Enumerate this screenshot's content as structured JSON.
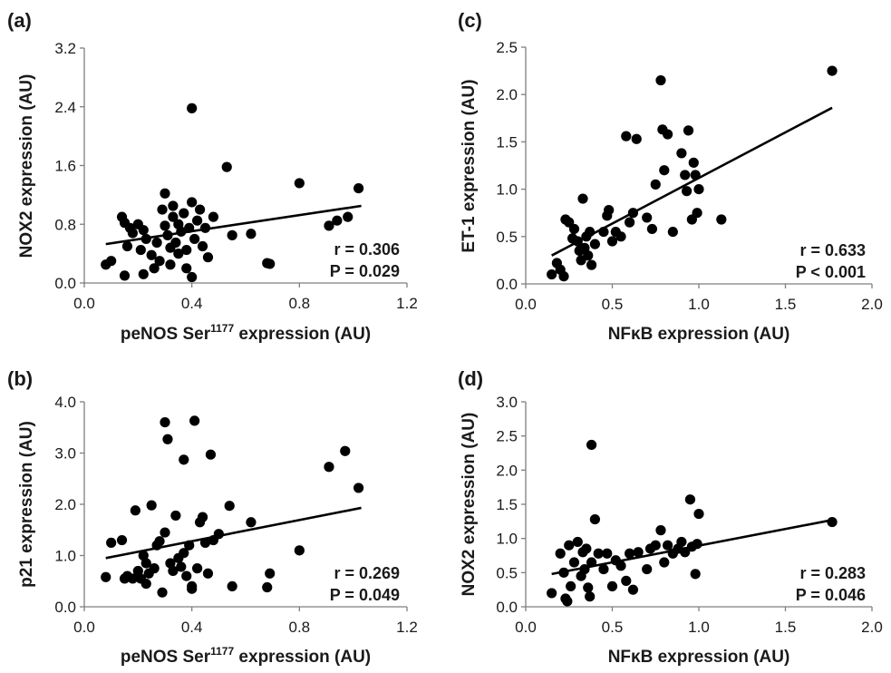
{
  "chart_data": [
    {
      "type": "scatter",
      "panel_label": "(a)",
      "xlabel_main": "peNOS Ser",
      "xlabel_sup": "1177",
      "xlabel_rest": " expression  (AU)",
      "ylabel": "NOX2 expression (AU)",
      "xlim": [
        0,
        1.2
      ],
      "ylim": [
        0,
        3.2
      ],
      "xticks": [
        "0.0",
        "0.4",
        "0.8",
        "1.2"
      ],
      "yticks": [
        "0.0",
        "0.8",
        "1.6",
        "2.4",
        "3.2"
      ],
      "r_text": "r  = 0.306",
      "p_text": "P = 0.029",
      "trendline": {
        "x": [
          0.08,
          1.03
        ],
        "y": [
          0.53,
          1.05
        ]
      },
      "points": [
        [
          0.08,
          0.25
        ],
        [
          0.1,
          0.3
        ],
        [
          0.14,
          0.9
        ],
        [
          0.15,
          0.82
        ],
        [
          0.15,
          0.1
        ],
        [
          0.16,
          0.5
        ],
        [
          0.17,
          0.75
        ],
        [
          0.18,
          0.68
        ],
        [
          0.2,
          0.8
        ],
        [
          0.21,
          0.45
        ],
        [
          0.22,
          0.72
        ],
        [
          0.22,
          0.12
        ],
        [
          0.23,
          0.6
        ],
        [
          0.25,
          0.38
        ],
        [
          0.26,
          0.2
        ],
        [
          0.27,
          0.55
        ],
        [
          0.28,
          0.3
        ],
        [
          0.29,
          1.0
        ],
        [
          0.3,
          1.22
        ],
        [
          0.3,
          0.78
        ],
        [
          0.31,
          0.65
        ],
        [
          0.32,
          0.48
        ],
        [
          0.32,
          0.25
        ],
        [
          0.33,
          1.05
        ],
        [
          0.33,
          0.9
        ],
        [
          0.34,
          0.55
        ],
        [
          0.35,
          0.4
        ],
        [
          0.35,
          0.8
        ],
        [
          0.36,
          0.7
        ],
        [
          0.37,
          0.95
        ],
        [
          0.38,
          0.2
        ],
        [
          0.38,
          0.45
        ],
        [
          0.39,
          0.75
        ],
        [
          0.4,
          1.1
        ],
        [
          0.4,
          0.08
        ],
        [
          0.4,
          2.38
        ],
        [
          0.41,
          0.6
        ],
        [
          0.42,
          0.85
        ],
        [
          0.43,
          1.0
        ],
        [
          0.44,
          0.5
        ],
        [
          0.45,
          0.75
        ],
        [
          0.46,
          0.35
        ],
        [
          0.48,
          0.9
        ],
        [
          0.53,
          1.58
        ],
        [
          0.55,
          0.65
        ],
        [
          0.62,
          0.67
        ],
        [
          0.68,
          0.27
        ],
        [
          0.69,
          0.26
        ],
        [
          0.8,
          1.36
        ],
        [
          0.91,
          0.78
        ],
        [
          0.94,
          0.85
        ],
        [
          0.98,
          0.9
        ],
        [
          1.02,
          1.29
        ]
      ]
    },
    {
      "type": "scatter",
      "panel_label": "(b)",
      "xlabel_main": "peNOS Ser",
      "xlabel_sup": "1177",
      "xlabel_rest": " expression (AU)",
      "ylabel": "p21 expression (AU)",
      "xlim": [
        0,
        1.2
      ],
      "ylim": [
        0,
        4.0
      ],
      "xticks": [
        "0.0",
        "0.4",
        "0.8",
        "1.2"
      ],
      "yticks": [
        "0.0",
        "1.0",
        "2.0",
        "3.0",
        "4.0"
      ],
      "r_text": "r = 0.269",
      "p_text": "P = 0.049",
      "trendline": {
        "x": [
          0.08,
          1.03
        ],
        "y": [
          0.95,
          1.93
        ]
      },
      "points": [
        [
          0.08,
          0.58
        ],
        [
          0.1,
          1.25
        ],
        [
          0.14,
          1.3
        ],
        [
          0.15,
          0.55
        ],
        [
          0.16,
          0.6
        ],
        [
          0.18,
          0.55
        ],
        [
          0.19,
          1.88
        ],
        [
          0.2,
          0.7
        ],
        [
          0.21,
          0.55
        ],
        [
          0.22,
          1.0
        ],
        [
          0.23,
          0.85
        ],
        [
          0.23,
          0.45
        ],
        [
          0.24,
          0.65
        ],
        [
          0.25,
          1.98
        ],
        [
          0.26,
          0.75
        ],
        [
          0.27,
          1.2
        ],
        [
          0.28,
          1.28
        ],
        [
          0.29,
          0.28
        ],
        [
          0.3,
          3.6
        ],
        [
          0.3,
          1.45
        ],
        [
          0.31,
          3.27
        ],
        [
          0.32,
          0.85
        ],
        [
          0.33,
          0.7
        ],
        [
          0.34,
          1.78
        ],
        [
          0.35,
          0.95
        ],
        [
          0.36,
          0.78
        ],
        [
          0.37,
          2.87
        ],
        [
          0.37,
          1.05
        ],
        [
          0.38,
          0.6
        ],
        [
          0.39,
          1.2
        ],
        [
          0.4,
          0.4
        ],
        [
          0.4,
          0.35
        ],
        [
          0.41,
          3.63
        ],
        [
          0.42,
          0.75
        ],
        [
          0.43,
          1.65
        ],
        [
          0.44,
          1.75
        ],
        [
          0.45,
          1.25
        ],
        [
          0.46,
          0.65
        ],
        [
          0.47,
          2.97
        ],
        [
          0.48,
          1.3
        ],
        [
          0.5,
          1.42
        ],
        [
          0.54,
          1.97
        ],
        [
          0.55,
          0.4
        ],
        [
          0.62,
          1.65
        ],
        [
          0.68,
          0.38
        ],
        [
          0.69,
          0.65
        ],
        [
          0.8,
          1.1
        ],
        [
          0.91,
          2.73
        ],
        [
          0.97,
          3.04
        ],
        [
          1.02,
          2.32
        ]
      ]
    },
    {
      "type": "scatter",
      "panel_label": "(c)",
      "xlabel_main": "NFκB expression (AU)",
      "xlabel_sup": "",
      "xlabel_rest": "",
      "ylabel": "ET-1  expression (AU)",
      "xlim": [
        0,
        2.0
      ],
      "ylim": [
        0,
        2.5
      ],
      "xticks": [
        "0.0",
        "0.5",
        "1.0",
        "1.5",
        "2.0"
      ],
      "yticks": [
        "0.0",
        "0.5",
        "1.0",
        "1.5",
        "2.0",
        "2.5"
      ],
      "r_text": "r = 0.633",
      "p_text": "P < 0.001",
      "trendline": {
        "x": [
          0.15,
          1.77
        ],
        "y": [
          0.3,
          1.86
        ]
      },
      "points": [
        [
          0.15,
          0.1
        ],
        [
          0.18,
          0.22
        ],
        [
          0.2,
          0.15
        ],
        [
          0.22,
          0.08
        ],
        [
          0.23,
          0.68
        ],
        [
          0.25,
          0.65
        ],
        [
          0.27,
          0.48
        ],
        [
          0.28,
          0.58
        ],
        [
          0.3,
          0.45
        ],
        [
          0.31,
          0.35
        ],
        [
          0.32,
          0.25
        ],
        [
          0.33,
          0.9
        ],
        [
          0.34,
          0.38
        ],
        [
          0.35,
          0.5
        ],
        [
          0.36,
          0.3
        ],
        [
          0.37,
          0.55
        ],
        [
          0.38,
          0.2
        ],
        [
          0.4,
          0.42
        ],
        [
          0.45,
          0.55
        ],
        [
          0.47,
          0.72
        ],
        [
          0.48,
          0.78
        ],
        [
          0.5,
          0.45
        ],
        [
          0.52,
          0.55
        ],
        [
          0.55,
          0.5
        ],
        [
          0.58,
          1.56
        ],
        [
          0.6,
          0.65
        ],
        [
          0.62,
          0.75
        ],
        [
          0.64,
          1.53
        ],
        [
          0.7,
          0.7
        ],
        [
          0.73,
          0.58
        ],
        [
          0.75,
          1.05
        ],
        [
          0.78,
          2.15
        ],
        [
          0.79,
          1.63
        ],
        [
          0.8,
          1.2
        ],
        [
          0.82,
          1.58
        ],
        [
          0.85,
          0.55
        ],
        [
          0.9,
          1.38
        ],
        [
          0.92,
          1.15
        ],
        [
          0.93,
          0.98
        ],
        [
          0.94,
          1.62
        ],
        [
          0.96,
          0.68
        ],
        [
          0.97,
          1.28
        ],
        [
          0.98,
          1.15
        ],
        [
          0.99,
          0.75
        ],
        [
          1.0,
          1.0
        ],
        [
          1.13,
          0.68
        ],
        [
          1.77,
          2.25
        ]
      ]
    },
    {
      "type": "scatter",
      "panel_label": "(d)",
      "xlabel_main": "NFκB expression (AU)",
      "xlabel_sup": "",
      "xlabel_rest": "",
      "ylabel": "NOX2 expression (AU)",
      "xlim": [
        0,
        2.0
      ],
      "ylim": [
        0,
        3.0
      ],
      "xticks": [
        "0.0",
        "0.5",
        "1.0",
        "1.5",
        "2.0"
      ],
      "yticks": [
        "0.0",
        "0.5",
        "1.0",
        "1.5",
        "2.0",
        "2.5",
        "3.0"
      ],
      "r_text": "r = 0.283",
      "p_text": "P = 0.046",
      "trendline": {
        "x": [
          0.15,
          1.77
        ],
        "y": [
          0.48,
          1.27
        ]
      },
      "points": [
        [
          0.15,
          0.2
        ],
        [
          0.2,
          0.78
        ],
        [
          0.22,
          0.5
        ],
        [
          0.23,
          0.12
        ],
        [
          0.24,
          0.08
        ],
        [
          0.25,
          0.9
        ],
        [
          0.26,
          0.3
        ],
        [
          0.28,
          0.65
        ],
        [
          0.3,
          0.95
        ],
        [
          0.32,
          0.45
        ],
        [
          0.33,
          0.8
        ],
        [
          0.34,
          0.55
        ],
        [
          0.35,
          0.85
        ],
        [
          0.36,
          0.28
        ],
        [
          0.37,
          0.15
        ],
        [
          0.38,
          2.37
        ],
        [
          0.38,
          0.65
        ],
        [
          0.4,
          1.28
        ],
        [
          0.42,
          0.78
        ],
        [
          0.45,
          0.55
        ],
        [
          0.47,
          0.78
        ],
        [
          0.5,
          0.3
        ],
        [
          0.52,
          0.68
        ],
        [
          0.55,
          0.6
        ],
        [
          0.58,
          0.38
        ],
        [
          0.6,
          0.78
        ],
        [
          0.62,
          0.25
        ],
        [
          0.65,
          0.8
        ],
        [
          0.7,
          0.55
        ],
        [
          0.72,
          0.85
        ],
        [
          0.75,
          0.9
        ],
        [
          0.78,
          1.12
        ],
        [
          0.8,
          0.65
        ],
        [
          0.82,
          0.9
        ],
        [
          0.85,
          0.78
        ],
        [
          0.88,
          0.85
        ],
        [
          0.9,
          0.95
        ],
        [
          0.92,
          0.8
        ],
        [
          0.95,
          1.57
        ],
        [
          0.96,
          0.88
        ],
        [
          0.98,
          0.48
        ],
        [
          0.99,
          0.92
        ],
        [
          1.0,
          1.36
        ],
        [
          1.77,
          1.24
        ]
      ]
    }
  ]
}
